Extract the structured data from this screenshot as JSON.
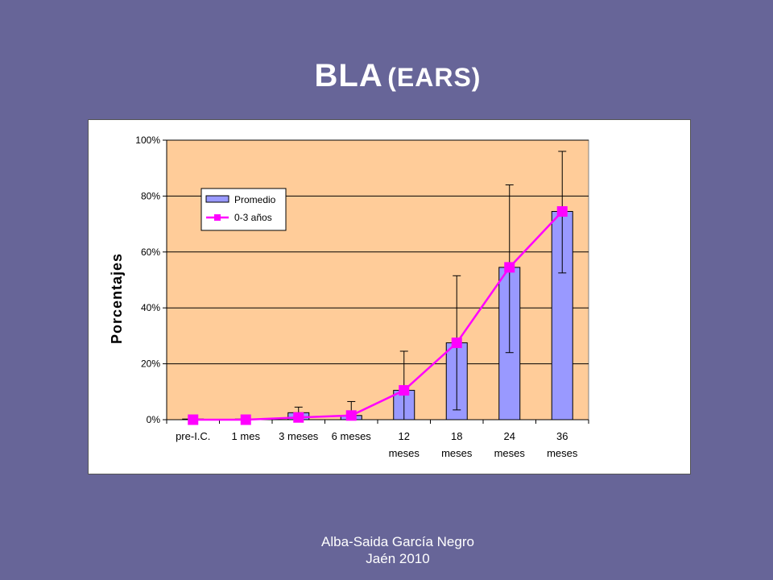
{
  "slide": {
    "title_main": "BLA",
    "title_sub": "(EARS)",
    "footer_line1": "Alba-Saida García Negro",
    "footer_line2": "Jaén 2010"
  },
  "colors": {
    "background": "#676598",
    "plot_area": "#FFCC99",
    "bar_fill": "#9999FF",
    "line": "#FF00FF"
  },
  "chart_data": {
    "type": "bar",
    "title": "",
    "xlabel": "",
    "ylabel": "Porcentajes",
    "ylim": [
      0,
      100
    ],
    "y_ticks": [
      0,
      20,
      40,
      60,
      80,
      100
    ],
    "y_tick_labels": [
      "0%",
      "20%",
      "40%",
      "60%",
      "80%",
      "100%"
    ],
    "grid": true,
    "legend_position": "top-left",
    "categories": [
      [
        "pre-I.C."
      ],
      [
        "1 mes"
      ],
      [
        "3 meses"
      ],
      [
        "6 meses"
      ],
      [
        "12",
        "meses"
      ],
      [
        "18",
        "meses"
      ],
      [
        "24",
        "meses"
      ],
      [
        "36",
        "meses"
      ]
    ],
    "series": [
      {
        "name": "Promedio",
        "kind": "bar",
        "values": [
          0,
          0,
          2.5,
          1.5,
          10.5,
          27.5,
          54.5,
          74.5
        ],
        "error_upper": [
          0,
          0,
          4.5,
          6.5,
          24.5,
          51.5,
          84,
          96
        ],
        "error_lower": [
          0,
          0,
          0.5,
          0,
          0,
          3.5,
          24,
          52.5
        ]
      },
      {
        "name": "0-3 años",
        "kind": "line",
        "values": [
          0,
          0,
          0.8,
          1.5,
          10.5,
          27.5,
          54.5,
          74.5
        ]
      }
    ]
  }
}
